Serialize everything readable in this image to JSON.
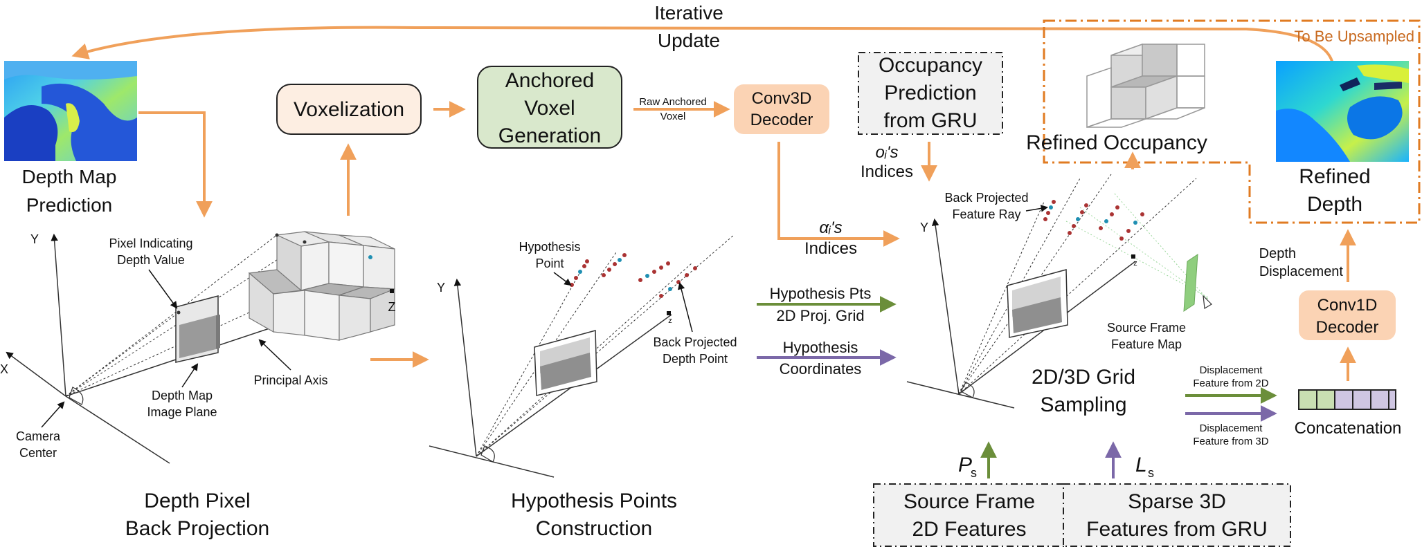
{
  "labels": {
    "iterative_1": "Iterative",
    "iterative_2": "Update",
    "to_be_upsampled": "To Be Upsampled",
    "depth_map_pred_1": "Depth Map",
    "depth_map_pred_2": "Prediction",
    "voxelization": "Voxelization",
    "anchored_1": "Anchored",
    "anchored_2": "Voxel",
    "anchored_3": "Generation",
    "raw_anchored_1": "Raw Anchored",
    "raw_anchored_2": "Voxel",
    "conv3d_1": "Conv3D",
    "conv3d_2": "Decoder",
    "occ_pred_1": "Occupancy",
    "occ_pred_2": "Prediction",
    "occ_pred_3": "from GRU",
    "refined_occupancy": "Refined Occupancy",
    "refined_depth_1": "Refined",
    "refined_depth_2": "Depth",
    "oi_indices_1": "oᵢ's",
    "oi_indices_2": "Indices",
    "alpha_indices_1": "αᵢ's",
    "alpha_indices_2": "Indices",
    "back_proj_ray_1": "Back Projected",
    "back_proj_ray_2": "Feature Ray",
    "depth_disp_1": "Depth",
    "depth_disp_2": "Displacement",
    "conv1d_1": "Conv1D",
    "conv1d_2": "Decoder",
    "pixel_ind_1": "Pixel Indicating",
    "pixel_ind_2": "Depth Value",
    "axis_y": "Y",
    "axis_x": "X",
    "axis_z": "Z",
    "axis_z_small": "z",
    "principal_axis": "Principal Axis",
    "depth_map_plane_1": "Depth Map",
    "depth_map_plane_2": "Image Plane",
    "camera_center_1": "Camera",
    "camera_center_2": "Center",
    "depth_pixel_bp_1": "Depth Pixel",
    "depth_pixel_bp_2": "Back Projection",
    "hyp_point_1": "Hypothesis",
    "hyp_point_2": "Point",
    "bp_depth_point_1": "Back Projected",
    "bp_depth_point_2": "Depth Point",
    "hyp_construction_1": "Hypothesis Points",
    "hyp_construction_2": "Construction",
    "hyp_pts_1": "Hypothesis Pts",
    "hyp_pts_2": "2D Proj. Grid",
    "hyp_coords_1": "Hypothesis",
    "hyp_coords_2": "Coordinates",
    "source_frame_map_1": "Source Frame",
    "source_frame_map_2": "Feature Map",
    "grid_sampling_1": "2D/3D Grid",
    "grid_sampling_2": "Sampling",
    "disp_2d_1": "Displacement",
    "disp_2d_2": "Feature from 2D",
    "disp_3d_1": "Displacement",
    "disp_3d_2": "Feature from 3D",
    "concatenation": "Concatenation",
    "ps_symbol": "P",
    "ps_sub": "s",
    "ls_symbol": "L",
    "ls_sub": "s",
    "source_2d_1": "Source Frame",
    "source_2d_2": "2D Features",
    "sparse_3d_1": "Sparse 3D",
    "sparse_3d_2": "Features from GRU"
  },
  "colors": {
    "orange_arrow": "#f0a05a",
    "orange_dash": "#e07b22",
    "orange_text": "#c8691e",
    "green_arrow": "#6b8e3a",
    "purple_arrow": "#7b68a8",
    "voxelization_fill": "#fdeee2",
    "anchored_fill": "#d9e8cc",
    "conv_fill": "#fbd3b4",
    "gray_box_fill": "#f1f1f1",
    "concat_green": "#c9dfb2",
    "concat_purple": "#cfc6e2"
  },
  "icons": [
    "depth-map-heatmap",
    "refined-depth-heatmap",
    "voxel-cube-stack",
    "camera-frustum"
  ]
}
